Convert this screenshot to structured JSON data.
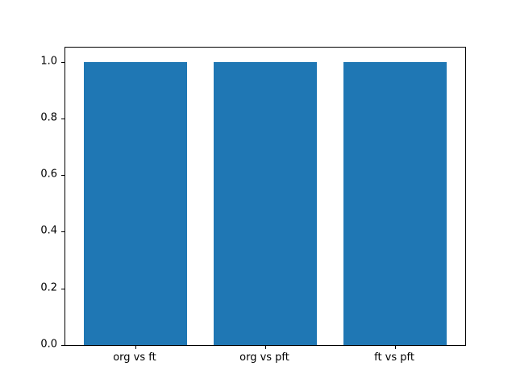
{
  "chart_data": {
    "type": "bar",
    "categories": [
      "org vs ft",
      "org vs pft",
      "ft vs pft"
    ],
    "values": [
      1.0,
      1.0,
      1.0
    ],
    "title": "",
    "xlabel": "",
    "ylabel": "",
    "ylim": [
      0,
      1.05
    ],
    "xlim": [
      -0.54,
      2.54
    ],
    "yticks": [
      0.0,
      0.2,
      0.4,
      0.6,
      0.8,
      1.0
    ],
    "ytick_labels": [
      "0.0",
      "0.2",
      "0.4",
      "0.6",
      "0.8",
      "1.0"
    ],
    "bar_width": 0.8,
    "bar_color": "#1f77b4",
    "grid": false,
    "legend_position": "none"
  },
  "colors": {
    "background": "#ffffff",
    "spine": "#000000",
    "bar": "#1f77b4",
    "tick_text": "#000000"
  }
}
